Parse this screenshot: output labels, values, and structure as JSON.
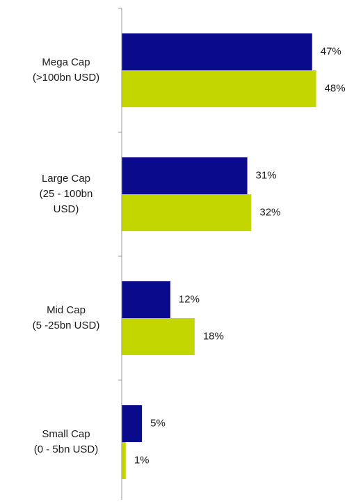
{
  "chart_data": {
    "type": "bar",
    "orientation": "horizontal",
    "categories": [
      [
        "Mega Cap",
        "(>100bn USD)"
      ],
      [
        "Large Cap",
        "(25 - 100bn",
        "USD)"
      ],
      [
        "Mid Cap",
        "(5 -25bn USD)"
      ],
      [
        "Small Cap",
        "(0 - 5bn USD)"
      ]
    ],
    "series": [
      {
        "color": "#0a0a8c",
        "values": [
          47,
          31,
          12,
          5
        ],
        "value_labels": [
          "47%",
          "31%",
          "12%",
          "5%"
        ]
      },
      {
        "color": "#c4d600",
        "values": [
          48,
          32,
          18,
          1
        ],
        "value_labels": [
          "48%",
          "32%",
          "18%",
          "1%"
        ]
      }
    ],
    "xlim": [
      0,
      57
    ]
  }
}
